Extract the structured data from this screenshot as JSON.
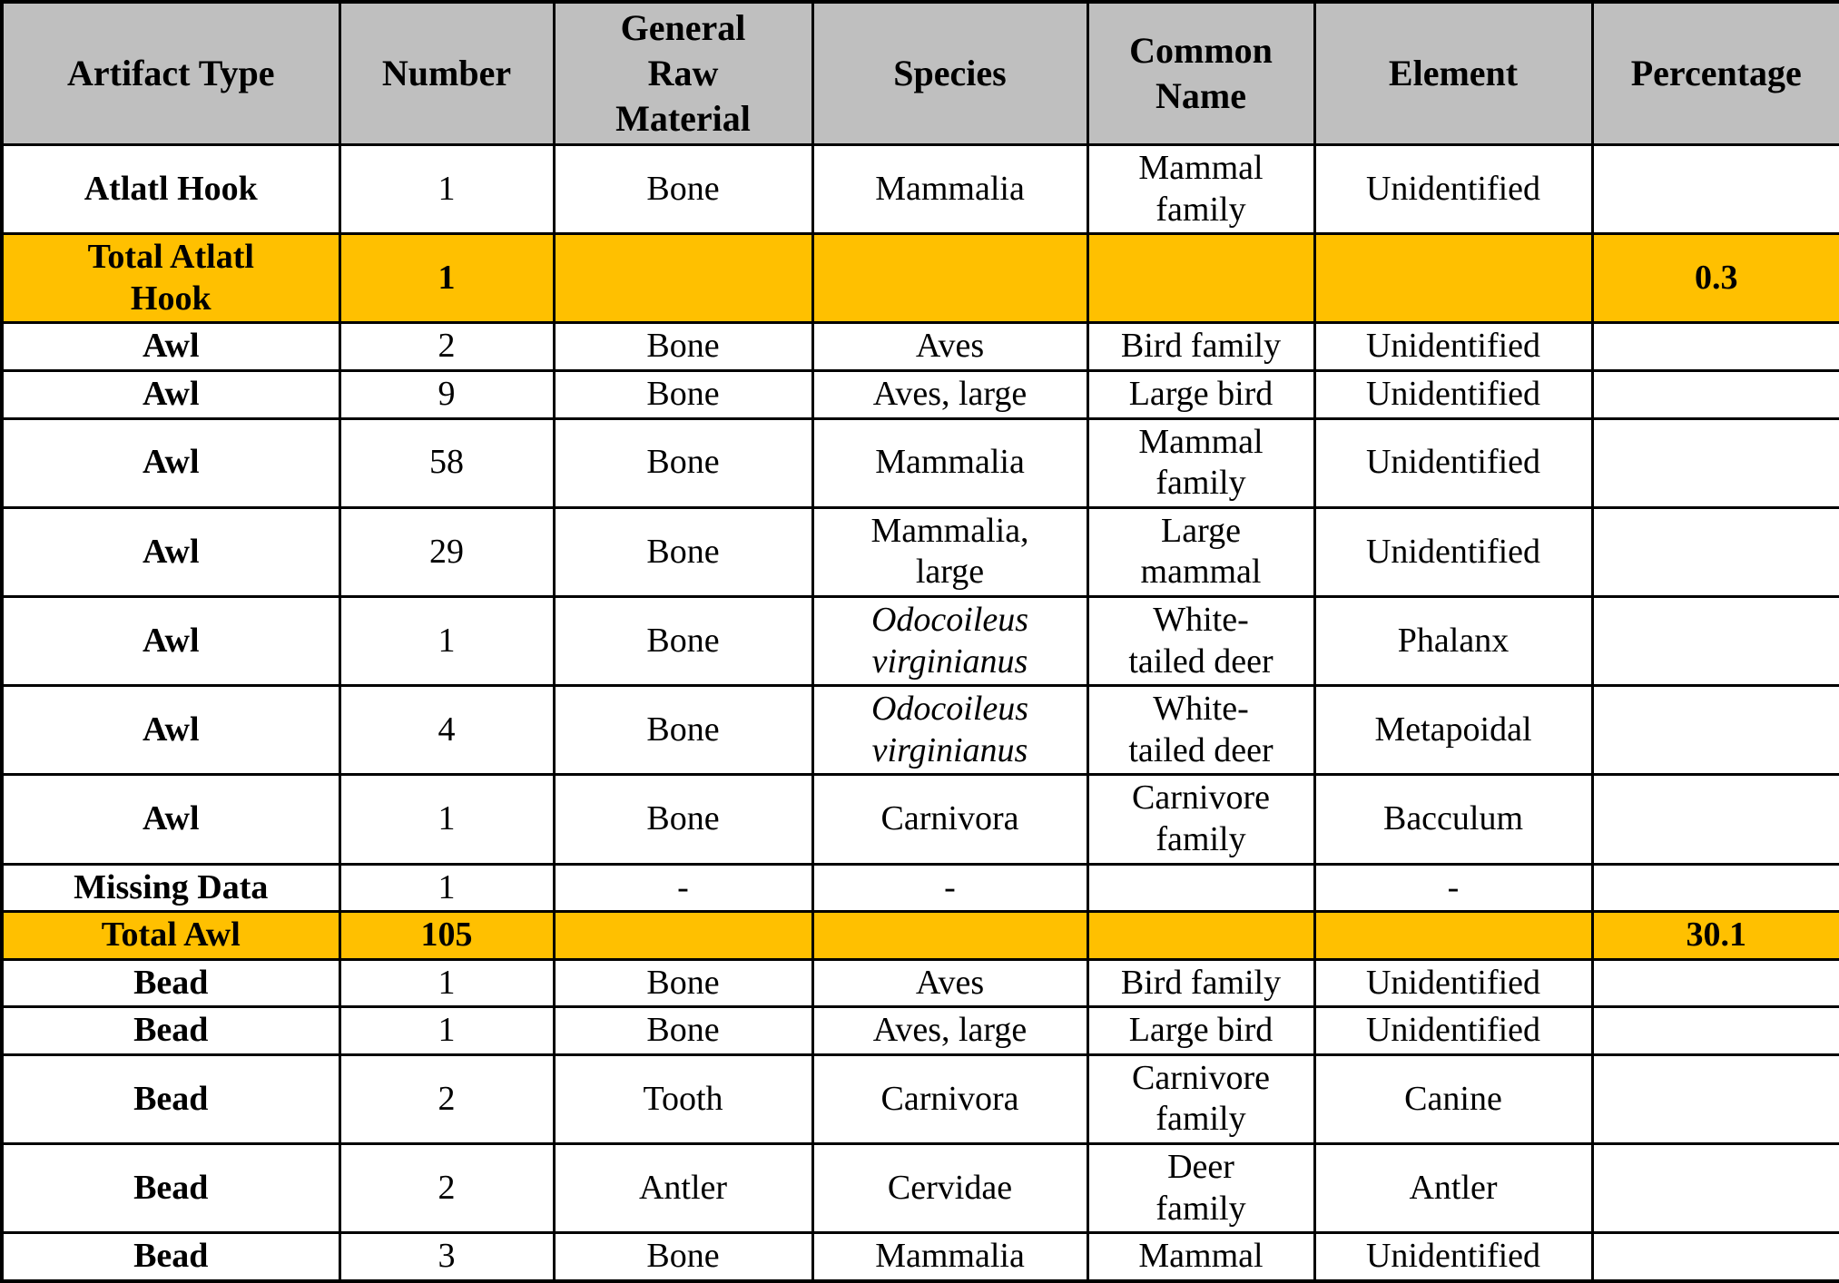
{
  "colors": {
    "header_bg": "#bfbfbf",
    "total_row_bg": "#ffc000",
    "border": "#000000",
    "row_bg": "#ffffff"
  },
  "columns": [
    {
      "key": "artifact_type",
      "label": "Artifact Type"
    },
    {
      "key": "number",
      "label": "Number"
    },
    {
      "key": "material",
      "label": "General\nRaw\nMaterial"
    },
    {
      "key": "species",
      "label": "Species"
    },
    {
      "key": "common_name",
      "label": "Common\nName"
    },
    {
      "key": "element",
      "label": "Element"
    },
    {
      "key": "percentage",
      "label": "Percentage"
    }
  ],
  "rows": [
    {
      "kind": "data",
      "artifact_type": "Atlatl Hook",
      "number": "1",
      "material": "Bone",
      "species": "Mammalia",
      "common_name": "Mammal\nfamily",
      "element": "Unidentified",
      "percentage": ""
    },
    {
      "kind": "total",
      "artifact_type": "Total Atlatl\nHook",
      "number": "1",
      "material": "",
      "species": "",
      "common_name": "",
      "element": "",
      "percentage": "0.3"
    },
    {
      "kind": "data",
      "artifact_type": "Awl",
      "number": "2",
      "material": "Bone",
      "species": "Aves",
      "common_name": "Bird family",
      "element": "Unidentified",
      "percentage": ""
    },
    {
      "kind": "data",
      "artifact_type": "Awl",
      "number": "9",
      "material": "Bone",
      "species": "Aves, large",
      "common_name": "Large bird",
      "element": "Unidentified",
      "percentage": ""
    },
    {
      "kind": "data",
      "artifact_type": "Awl",
      "number": "58",
      "material": "Bone",
      "species": "Mammalia",
      "common_name": "Mammal\nfamily",
      "element": "Unidentified",
      "percentage": ""
    },
    {
      "kind": "data",
      "artifact_type": "Awl",
      "number": "29",
      "material": "Bone",
      "species": "Mammalia,\nlarge",
      "common_name": "Large\nmammal",
      "element": "Unidentified",
      "percentage": ""
    },
    {
      "kind": "data",
      "artifact_type": "Awl",
      "number": "1",
      "material": "Bone",
      "species": "Odocoileus\nvirginianus",
      "species_italic": true,
      "common_name": "White-\ntailed deer",
      "element": "Phalanx",
      "percentage": ""
    },
    {
      "kind": "data",
      "artifact_type": "Awl",
      "number": "4",
      "material": "Bone",
      "species": "Odocoileus\nvirginianus",
      "species_italic": true,
      "common_name": "White-\ntailed deer",
      "element": "Metapoidal",
      "percentage": ""
    },
    {
      "kind": "data",
      "artifact_type": "Awl",
      "number": "1",
      "material": "Bone",
      "species": "Carnivora",
      "common_name": "Carnivore\nfamily",
      "element": "Bacculum",
      "percentage": ""
    },
    {
      "kind": "data",
      "artifact_type": "Missing Data",
      "number": "1",
      "material": "-",
      "species": "-",
      "common_name": "",
      "element": "-",
      "percentage": ""
    },
    {
      "kind": "total",
      "artifact_type": "Total Awl",
      "number": "105",
      "material": "",
      "species": "",
      "common_name": "",
      "element": "",
      "percentage": "30.1"
    },
    {
      "kind": "data",
      "artifact_type": "Bead",
      "number": "1",
      "material": "Bone",
      "species": "Aves",
      "common_name": "Bird family",
      "element": "Unidentified",
      "percentage": ""
    },
    {
      "kind": "data",
      "artifact_type": "Bead",
      "number": "1",
      "material": "Bone",
      "species": "Aves, large",
      "common_name": "Large bird",
      "element": "Unidentified",
      "percentage": ""
    },
    {
      "kind": "data",
      "artifact_type": "Bead",
      "number": "2",
      "material": "Tooth",
      "species": "Carnivora",
      "common_name": "Carnivore\nfamily",
      "element": "Canine",
      "percentage": ""
    },
    {
      "kind": "data",
      "artifact_type": "Bead",
      "number": "2",
      "material": "Antler",
      "species": "Cervidae",
      "common_name": "Deer\nfamily",
      "element": "Antler",
      "percentage": ""
    },
    {
      "kind": "data",
      "artifact_type": "Bead",
      "number": "3",
      "material": "Bone",
      "species": "Mammalia",
      "common_name": "Mammal",
      "element": "Unidentified",
      "percentage": ""
    }
  ]
}
